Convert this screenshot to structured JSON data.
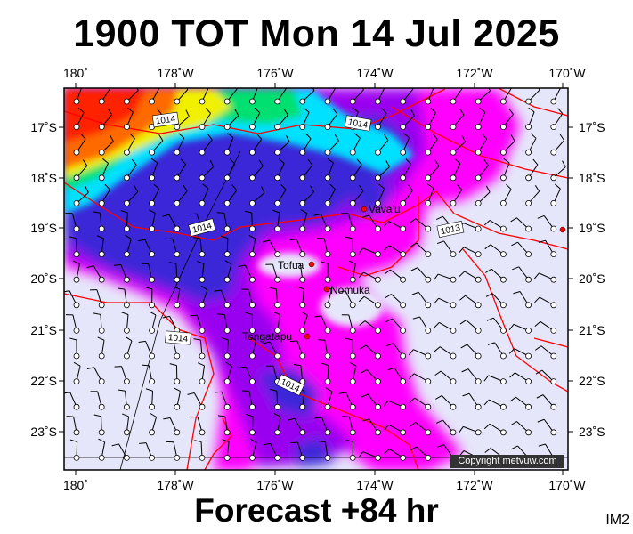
{
  "title": "1900 TOT Mon 14 Jul 2025",
  "subtitle": "Forecast +84 hr",
  "image_tag": "IM2",
  "copyright": "Copyright metvuw.com",
  "lon_ticks": [
    "180˚",
    "178˚W",
    "176˚W",
    "174˚W",
    "172˚W",
    "170˚W"
  ],
  "lat_ticks": [
    "17˚S",
    "18˚S",
    "19˚S",
    "20˚S",
    "21˚S",
    "22˚S",
    "23˚S"
  ],
  "places": [
    {
      "name": "Vava'u"
    },
    {
      "name": "Tofua"
    },
    {
      "name": "Nomuka"
    },
    {
      "name": "Tongatapu"
    }
  ],
  "isobar_labels": [
    "1014",
    "1014",
    "1014",
    "1013",
    "1014",
    "1014"
  ],
  "colors": {
    "background": "#e6e6fa",
    "magenta": "#ff00ff",
    "purple": "#9a00f0",
    "blue": "#3a28d8",
    "cyan": "#00e0ff",
    "green": "#00e070",
    "yellow": "#f0f000",
    "orange": "#ff6a00",
    "red": "#ff2200",
    "isobar": "#ff0000"
  }
}
